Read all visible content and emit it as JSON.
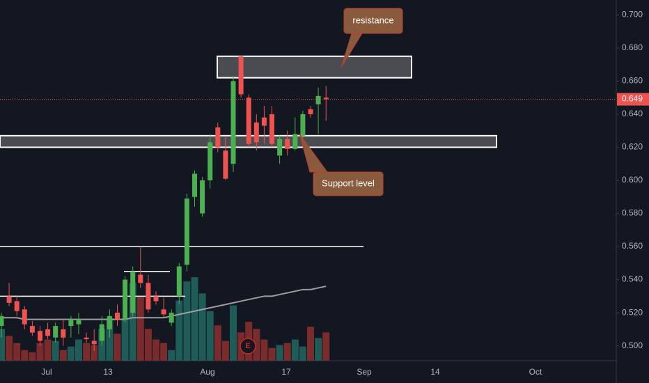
{
  "chart_data": {
    "type": "candlestick",
    "open": [
      0.512,
      0.53,
      0.527,
      0.522,
      0.512,
      0.509,
      0.51,
      0.505,
      0.51,
      0.512,
      0.513,
      0.505,
      0.503,
      0.503,
      0.51,
      0.52,
      0.516,
      0.52,
      0.543,
      0.538,
      0.53,
      0.522,
      0.514,
      0.53,
      0.549,
      0.59,
      0.58,
      0.6,
      0.632,
      0.618,
      0.61,
      0.675,
      0.65,
      0.635,
      0.638,
      0.64,
      0.615,
      0.625,
      0.619,
      0.627,
      0.643,
      0.646,
      0.65
    ],
    "high": [
      0.52,
      0.538,
      0.53,
      0.524,
      0.515,
      0.512,
      0.514,
      0.514,
      0.516,
      0.518,
      0.52,
      0.508,
      0.51,
      0.518,
      0.522,
      0.525,
      0.542,
      0.548,
      0.56,
      0.543,
      0.533,
      0.529,
      0.522,
      0.55,
      0.592,
      0.606,
      0.602,
      0.628,
      0.635,
      0.626,
      0.663,
      0.675,
      0.652,
      0.64,
      0.645,
      0.645,
      0.627,
      0.63,
      0.638,
      0.642,
      0.645,
      0.656,
      0.657
    ],
    "low": [
      0.505,
      0.524,
      0.518,
      0.51,
      0.506,
      0.5,
      0.504,
      0.502,
      0.5,
      0.505,
      0.507,
      0.502,
      0.497,
      0.5,
      0.505,
      0.512,
      0.514,
      0.518,
      0.535,
      0.52,
      0.525,
      0.517,
      0.512,
      0.525,
      0.545,
      0.584,
      0.578,
      0.595,
      0.617,
      0.6,
      0.605,
      0.65,
      0.62,
      0.618,
      0.622,
      0.62,
      0.61,
      0.615,
      0.618,
      0.622,
      0.638,
      0.628,
      0.636
    ],
    "close": [
      0.518,
      0.526,
      0.521,
      0.513,
      0.508,
      0.503,
      0.506,
      0.512,
      0.505,
      0.516,
      0.516,
      0.504,
      0.501,
      0.513,
      0.518,
      0.516,
      0.54,
      0.545,
      0.538,
      0.522,
      0.527,
      0.519,
      0.52,
      0.548,
      0.589,
      0.604,
      0.6,
      0.623,
      0.62,
      0.601,
      0.66,
      0.652,
      0.622,
      0.623,
      0.633,
      0.622,
      0.625,
      0.619,
      0.628,
      0.64,
      0.64,
      0.651,
      0.649
    ],
    "volume": [
      45,
      35,
      25,
      15,
      12,
      25,
      30,
      28,
      15,
      20,
      30,
      25,
      22,
      45,
      60,
      38,
      60,
      110,
      90,
      45,
      30,
      25,
      15,
      85,
      112,
      118,
      95,
      70,
      50,
      28,
      78,
      40,
      55,
      45,
      30,
      18,
      22,
      25,
      30,
      20,
      48,
      32,
      40
    ],
    "ma": [
      0.517,
      0.517,
      0.517,
      0.516,
      0.516,
      0.516,
      0.516,
      0.516,
      0.516,
      0.516,
      0.516,
      0.516,
      0.516,
      0.516,
      0.516,
      0.516,
      0.516,
      0.517,
      0.517,
      0.517,
      0.517,
      0.517,
      0.518,
      0.519,
      0.52,
      0.521,
      0.522,
      0.523,
      0.524,
      0.525,
      0.526,
      0.527,
      0.528,
      0.529,
      0.53,
      0.53,
      0.531,
      0.532,
      0.533,
      0.534,
      0.534,
      0.535,
      0.536
    ],
    "up_color": "#4caf50",
    "down_color": "#ef5350",
    "ma_color": "#9e9e9e",
    "ylim": [
      0.491,
      0.709
    ],
    "yticks": [
      {
        "value": 0.5,
        "label": "0.500"
      },
      {
        "value": 0.52,
        "label": "0.520"
      },
      {
        "value": 0.54,
        "label": "0.540"
      },
      {
        "value": 0.56,
        "label": "0.560"
      },
      {
        "value": 0.58,
        "label": "0.580"
      },
      {
        "value": 0.6,
        "label": "0.600"
      },
      {
        "value": 0.62,
        "label": "0.620"
      },
      {
        "value": 0.64,
        "label": "0.640"
      },
      {
        "value": 0.66,
        "label": "0.660"
      },
      {
        "value": 0.68,
        "label": "0.680"
      },
      {
        "value": 0.7,
        "label": "0.700"
      }
    ],
    "x_labels": [
      "Jul",
      "13",
      "Aug",
      "17",
      "Sep",
      "14",
      "Oct"
    ],
    "last_price": 0.649,
    "zones": [
      {
        "low": 0.662,
        "high": 0.675
      },
      {
        "low": 0.62,
        "high": 0.627
      }
    ],
    "levels": [
      0.56,
      0.545,
      0.53
    ],
    "annotations": [
      {
        "text": "resistance"
      },
      {
        "text": "Support level"
      }
    ],
    "earnings_marker": "E"
  }
}
